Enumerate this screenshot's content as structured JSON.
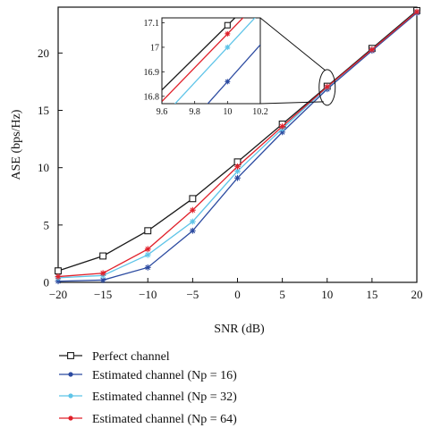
{
  "chart_data": {
    "type": "line",
    "title": "",
    "xlabel": "SNR (dB)",
    "ylabel": "ASE (bps/Hz)",
    "xlim": [
      -20,
      20
    ],
    "ylim": [
      0,
      24
    ],
    "xticks": [
      -20,
      -15,
      -10,
      -5,
      0,
      5,
      10,
      15,
      20
    ],
    "yticks": [
      0,
      5,
      10,
      15,
      20
    ],
    "x": [
      -20,
      -15,
      -10,
      -5,
      0,
      5,
      10,
      15,
      20
    ],
    "series": [
      {
        "name": "Perfect channel",
        "color": "#1a1a1a",
        "marker": "square",
        "values": [
          1.0,
          2.3,
          4.5,
          7.3,
          10.5,
          13.8,
          17.1,
          20.4,
          23.7
        ]
      },
      {
        "name": "Estimated channel (Np = 16)",
        "color": "#2b4aa0",
        "marker": "asterisk",
        "values": [
          0.1,
          0.2,
          1.3,
          4.5,
          9.1,
          13.1,
          16.85,
          20.2,
          23.5
        ]
      },
      {
        "name": "Estimated channel (Np = 32)",
        "color": "#5ec4e8",
        "marker": "asterisk",
        "values": [
          0.4,
          0.6,
          2.4,
          5.3,
          9.7,
          13.4,
          17.0,
          20.3,
          23.6
        ]
      },
      {
        "name": "Estimated channel (Np = 64)",
        "color": "#e0202a",
        "marker": "asterisk",
        "values": [
          0.5,
          0.8,
          2.9,
          6.3,
          10.1,
          13.6,
          17.05,
          20.3,
          23.6
        ]
      }
    ],
    "inset": {
      "xlim": [
        9.6,
        10.2
      ],
      "ylim": [
        16.77,
        17.12
      ],
      "xticks": [
        "9.6",
        "9.8",
        "10",
        "10.2"
      ],
      "yticks": [
        "16.8",
        "16.9",
        "17",
        "17.1"
      ],
      "points_x": 10,
      "points": [
        17.09,
        16.86,
        17.0,
        17.055
      ]
    },
    "legend_position": "bottom"
  }
}
